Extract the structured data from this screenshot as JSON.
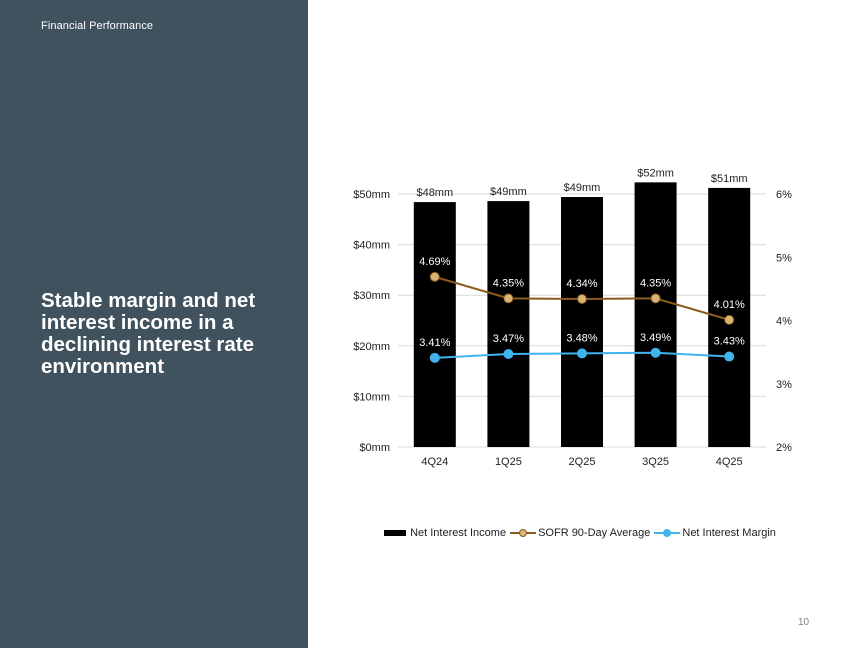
{
  "header": {
    "section": "Financial Performance"
  },
  "headline": "Stable margin and net interest income in a declining interest rate environment",
  "page_number": "10",
  "colors": {
    "panel": "#41525f",
    "bars": "#000000",
    "sofr": "#8b5a1e",
    "sofr_marker": "#d7b675",
    "nim": "#3fb3ec",
    "grid": "#d9d9d9"
  },
  "chart_data": {
    "type": "bar",
    "categories": [
      "4Q24",
      "1Q25",
      "2Q25",
      "3Q25",
      "4Q25"
    ],
    "series": [
      {
        "name": "Net Interest Income",
        "type": "bar",
        "axis": "left",
        "values": [
          48.4,
          48.6,
          49.4,
          52.3,
          51.2
        ],
        "labels": [
          "$48mm",
          "$49mm",
          "$49mm",
          "$52mm",
          "$51mm"
        ]
      },
      {
        "name": "SOFR 90-Day Average",
        "type": "line",
        "axis": "right",
        "values": [
          4.69,
          4.35,
          4.34,
          4.35,
          4.01
        ],
        "labels": [
          "4.69%",
          "4.35%",
          "4.34%",
          "4.35%",
          "4.01%"
        ]
      },
      {
        "name": "Net Interest Margin",
        "type": "line",
        "axis": "right",
        "values": [
          3.41,
          3.47,
          3.48,
          3.49,
          3.43
        ],
        "labels": [
          "3.41%",
          "3.47%",
          "3.48%",
          "3.49%",
          "3.43%"
        ]
      }
    ],
    "y_left": {
      "ticks": [
        0,
        10,
        20,
        30,
        40,
        50
      ],
      "tick_labels": [
        "$0mm",
        "$10mm",
        "$20mm",
        "$30mm",
        "$40mm",
        "$50mm"
      ],
      "ylim": [
        0,
        50
      ]
    },
    "y_right": {
      "ticks": [
        2,
        3,
        4,
        5,
        6
      ],
      "tick_labels": [
        "2%",
        "3%",
        "4%",
        "5%",
        "6%"
      ],
      "ylim": [
        2,
        6
      ]
    },
    "grid": true,
    "legend_position": "bottom"
  }
}
